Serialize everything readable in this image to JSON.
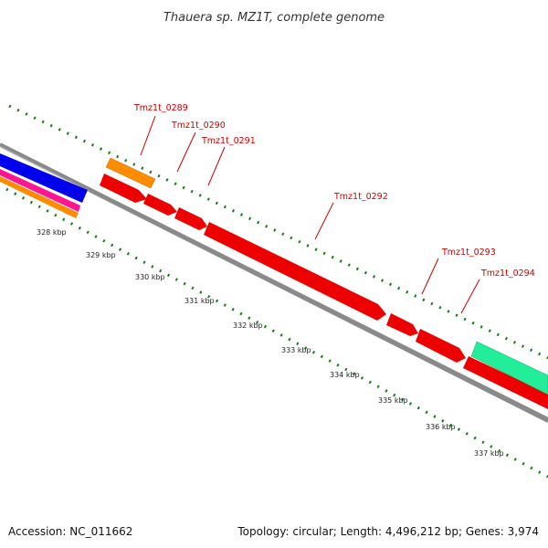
{
  "title": "Thauera sp. MZ1T, complete genome",
  "accession_text": "Accession: NC_011662",
  "summary_text": "Topology: circular; Length: 4,496,212 bp; Genes: 3,974",
  "colors": {
    "backbone": "#8a8a8a",
    "dotted_track": "#1a7a1a",
    "gene_red": "#ee0000",
    "gene_orange": "#ff8c00",
    "gene_blue": "#0000ee",
    "gene_magenta": "#ff1493",
    "gene_green": "#22ee99",
    "label_red": "#cc0000"
  },
  "kbp_ticks": [
    "328 kbp",
    "329 kbp",
    "330 kbp",
    "331 kbp",
    "332 kbp",
    "333 kbp",
    "334 kbp",
    "335 kbp",
    "336 kbp",
    "337 kbp"
  ],
  "gene_labels": [
    "Tmz1t_0289",
    "Tmz1t_0290",
    "Tmz1t_0291",
    "Tmz1t_0292",
    "Tmz1t_0293",
    "Tmz1t_0294"
  ]
}
